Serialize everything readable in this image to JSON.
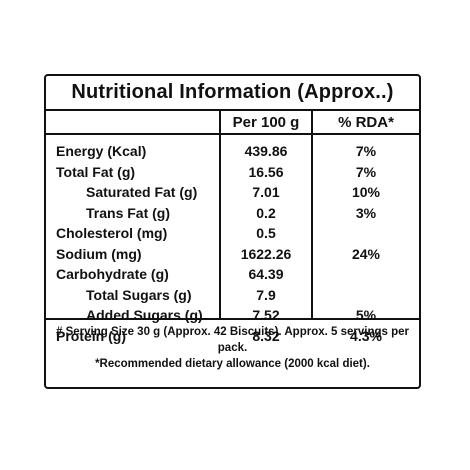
{
  "title": "Nutritional Information (Approx..)",
  "columns": {
    "per100": "Per 100 g",
    "rda": "% RDA*"
  },
  "rows": [
    {
      "label": "Energy (Kcal)",
      "value": "439.86",
      "rda": "7%",
      "indent": false
    },
    {
      "label": "Total Fat (g)",
      "value": "16.56",
      "rda": "7%",
      "indent": false
    },
    {
      "label": "Saturated Fat (g)",
      "value": "7.01",
      "rda": "10%",
      "indent": true
    },
    {
      "label": "Trans Fat (g)",
      "value": "0.2",
      "rda": "3%",
      "indent": true
    },
    {
      "label": "Cholesterol (mg)",
      "value": "0.5",
      "rda": "",
      "indent": false
    },
    {
      "label": "Sodium (mg)",
      "value": "1622.26",
      "rda": "24%",
      "indent": false
    },
    {
      "label": "Carbohydrate (g)",
      "value": "64.39",
      "rda": "",
      "indent": false
    },
    {
      "label": "Total Sugars (g)",
      "value": "7.9",
      "rda": "",
      "indent": true
    },
    {
      "label": "Added Sugars (g)",
      "value": "7.52",
      "rda": "5%",
      "indent": true
    },
    {
      "label": "Protein (g)",
      "value": "8.32",
      "rda": "4.3%",
      "indent": false
    }
  ],
  "footnotes": [
    "# Serving Size 30 g (Approx. 42 Biscuits). Approx. 5 servings per pack.",
    "*Recommended dietary allowance (2000 kcal diet)."
  ]
}
